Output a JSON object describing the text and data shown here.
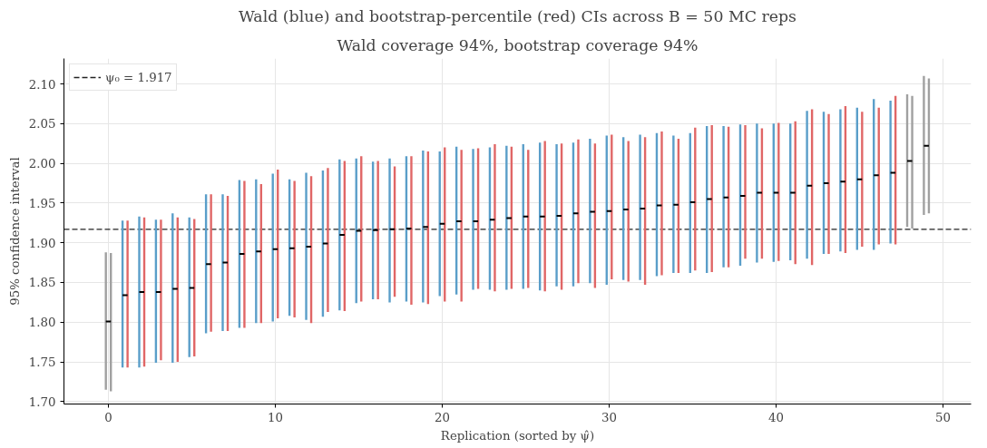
{
  "chart_data": {
    "type": "bar",
    "title": "Wald (blue) and bootstrap-percentile (red) CIs across B = 50 MC reps",
    "subtitle": "Wald coverage 94%, bootstrap coverage 94%",
    "xlabel": "Replication (sorted by ψ̂)",
    "ylabel": "95% confidence interval",
    "xlim": [
      -2.66,
      51.68
    ],
    "ylim": [
      1.697,
      2.132
    ],
    "xticks": [
      0,
      10,
      20,
      30,
      40,
      50
    ],
    "yticks": [
      {
        "value": 1.7,
        "label": "1.70"
      },
      {
        "value": 1.75,
        "label": "1.75"
      },
      {
        "value": 1.8,
        "label": "1.80"
      },
      {
        "value": 1.85,
        "label": "1.85"
      },
      {
        "value": 1.9,
        "label": "1.90"
      },
      {
        "value": 1.95,
        "label": "1.95"
      },
      {
        "value": 2.0,
        "label": "2.00"
      },
      {
        "value": 2.05,
        "label": "2.05"
      },
      {
        "value": 2.1,
        "label": "2.10"
      }
    ],
    "grid": true,
    "legend": "top left",
    "ref_lines": [
      {
        "axis": "y",
        "value": 1.917,
        "label": "ψ₀ = 1.917",
        "color": "#222222",
        "line_style": "dashed"
      }
    ],
    "x": [
      0,
      1,
      2,
      3,
      4,
      5,
      6,
      7,
      8,
      9,
      10,
      11,
      12,
      13,
      14,
      15,
      16,
      17,
      18,
      19,
      20,
      21,
      22,
      23,
      24,
      25,
      26,
      27,
      28,
      29,
      30,
      31,
      32,
      33,
      34,
      35,
      36,
      37,
      38,
      39,
      40,
      41,
      42,
      43,
      44,
      45,
      46,
      47,
      48,
      49
    ],
    "series": [
      {
        "x": [
          -0.15,
          0.85,
          1.85,
          2.85,
          3.85,
          4.85,
          5.85,
          6.85,
          7.85,
          8.85,
          9.85,
          10.85,
          11.85,
          12.85,
          13.85,
          14.85,
          15.85,
          16.85,
          17.85,
          18.85,
          19.85,
          20.85,
          21.85,
          22.85,
          23.85,
          24.85,
          25.85,
          26.85,
          27.85,
          28.85,
          29.85,
          30.85,
          31.85,
          32.85,
          33.85,
          34.85,
          35.85,
          36.85,
          37.85,
          38.85,
          39.85,
          40.85,
          41.85,
          42.85,
          43.85,
          44.85,
          45.85,
          46.85,
          47.85,
          48.85
        ],
        "base": [
          1.715,
          1.743,
          1.743,
          1.749,
          1.749,
          1.756,
          1.786,
          1.789,
          1.793,
          1.799,
          1.801,
          1.808,
          1.803,
          1.807,
          1.815,
          1.824,
          1.829,
          1.825,
          1.826,
          1.825,
          1.833,
          1.835,
          1.841,
          1.841,
          1.841,
          1.842,
          1.84,
          1.845,
          1.845,
          1.849,
          1.847,
          1.853,
          1.853,
          1.858,
          1.862,
          1.862,
          1.862,
          1.869,
          1.871,
          1.875,
          1.876,
          1.878,
          1.88,
          1.886,
          1.889,
          1.891,
          1.891,
          1.899,
          1.92,
          1.935
        ],
        "values": [
          0.173,
          0.185,
          0.19,
          0.18,
          0.188,
          0.176,
          0.175,
          0.172,
          0.186,
          0.181,
          0.186,
          0.172,
          0.185,
          0.184,
          0.19,
          0.182,
          0.173,
          0.181,
          0.183,
          0.191,
          0.182,
          0.186,
          0.177,
          0.179,
          0.181,
          0.182,
          0.186,
          0.179,
          0.181,
          0.182,
          0.188,
          0.18,
          0.183,
          0.18,
          0.173,
          0.176,
          0.185,
          0.178,
          0.178,
          0.175,
          0.174,
          0.172,
          0.186,
          0.179,
          0.179,
          0.179,
          0.19,
          0.18,
          0.167,
          0.175
        ],
        "colors": [
          "#a0a0a0",
          "#5a9ec9",
          "#5a9ec9",
          "#5a9ec9",
          "#5a9ec9",
          "#5a9ec9",
          "#5a9ec9",
          "#5a9ec9",
          "#5a9ec9",
          "#5a9ec9",
          "#5a9ec9",
          "#5a9ec9",
          "#5a9ec9",
          "#5a9ec9",
          "#5a9ec9",
          "#5a9ec9",
          "#5a9ec9",
          "#5a9ec9",
          "#5a9ec9",
          "#5a9ec9",
          "#5a9ec9",
          "#5a9ec9",
          "#5a9ec9",
          "#5a9ec9",
          "#5a9ec9",
          "#5a9ec9",
          "#5a9ec9",
          "#5a9ec9",
          "#5a9ec9",
          "#5a9ec9",
          "#5a9ec9",
          "#5a9ec9",
          "#5a9ec9",
          "#5a9ec9",
          "#5a9ec9",
          "#5a9ec9",
          "#5a9ec9",
          "#5a9ec9",
          "#5a9ec9",
          "#5a9ec9",
          "#5a9ec9",
          "#5a9ec9",
          "#5a9ec9",
          "#5a9ec9",
          "#5a9ec9",
          "#5a9ec9",
          "#5a9ec9",
          "#5a9ec9",
          "#a0a0a0",
          "#a0a0a0"
        ]
      },
      {
        "x": [
          0.15,
          1.15,
          2.15,
          3.15,
          4.15,
          5.15,
          6.15,
          7.15,
          8.15,
          9.15,
          10.15,
          11.15,
          12.15,
          13.15,
          14.15,
          15.15,
          16.15,
          17.15,
          18.15,
          19.15,
          20.15,
          21.15,
          22.15,
          23.15,
          24.15,
          25.15,
          26.15,
          27.15,
          28.15,
          29.15,
          30.15,
          31.15,
          32.15,
          33.15,
          34.15,
          35.15,
          36.15,
          37.15,
          38.15,
          39.15,
          40.15,
          41.15,
          42.15,
          43.15,
          44.15,
          45.15,
          46.15,
          47.15,
          48.15,
          49.15
        ],
        "base": [
          1.713,
          1.743,
          1.744,
          1.752,
          1.75,
          1.757,
          1.788,
          1.789,
          1.793,
          1.799,
          1.805,
          1.806,
          1.799,
          1.813,
          1.814,
          1.826,
          1.829,
          1.832,
          1.822,
          1.823,
          1.826,
          1.826,
          1.842,
          1.839,
          1.842,
          1.843,
          1.839,
          1.841,
          1.849,
          1.843,
          1.854,
          1.851,
          1.847,
          1.859,
          1.862,
          1.865,
          1.863,
          1.869,
          1.88,
          1.88,
          1.877,
          1.873,
          1.872,
          1.886,
          1.887,
          1.895,
          1.898,
          1.898,
          1.918,
          1.937
        ],
        "values": [
          0.174,
          0.185,
          0.188,
          0.177,
          0.182,
          0.173,
          0.173,
          0.17,
          0.185,
          0.175,
          0.187,
          0.172,
          0.185,
          0.181,
          0.189,
          0.183,
          0.174,
          0.164,
          0.187,
          0.192,
          0.194,
          0.191,
          0.177,
          0.185,
          0.179,
          0.174,
          0.189,
          0.184,
          0.181,
          0.182,
          0.182,
          0.177,
          0.186,
          0.181,
          0.169,
          0.18,
          0.185,
          0.177,
          0.168,
          0.164,
          0.174,
          0.18,
          0.196,
          0.176,
          0.185,
          0.17,
          0.172,
          0.187,
          0.167,
          0.17
        ],
        "colors": [
          "#a0a0a0",
          "#e06666",
          "#e06666",
          "#e06666",
          "#e06666",
          "#e06666",
          "#e06666",
          "#e06666",
          "#e06666",
          "#e06666",
          "#e06666",
          "#e06666",
          "#e06666",
          "#e06666",
          "#e06666",
          "#e06666",
          "#e06666",
          "#e06666",
          "#e06666",
          "#e06666",
          "#e06666",
          "#e06666",
          "#e06666",
          "#e06666",
          "#e06666",
          "#e06666",
          "#e06666",
          "#e06666",
          "#e06666",
          "#e06666",
          "#e06666",
          "#e06666",
          "#e06666",
          "#e06666",
          "#e06666",
          "#e06666",
          "#e06666",
          "#e06666",
          "#e06666",
          "#e06666",
          "#e06666",
          "#e06666",
          "#e06666",
          "#e06666",
          "#e06666",
          "#e06666",
          "#e06666",
          "#e06666",
          "#a0a0a0",
          "#a0a0a0"
        ]
      },
      {
        "type": "scatter",
        "marker": "square",
        "color": "#000000",
        "values": [
          1.801,
          1.834,
          1.838,
          1.838,
          1.842,
          1.843,
          1.873,
          1.875,
          1.886,
          1.889,
          1.892,
          1.893,
          1.895,
          1.899,
          1.91,
          1.915,
          1.916,
          1.917,
          1.918,
          1.92,
          1.924,
          1.927,
          1.927,
          1.929,
          1.931,
          1.933,
          1.933,
          1.934,
          1.937,
          1.939,
          1.94,
          1.942,
          1.943,
          1.947,
          1.948,
          1.951,
          1.955,
          1.957,
          1.959,
          1.963,
          1.963,
          1.963,
          1.972,
          1.975,
          1.977,
          1.98,
          1.985,
          1.988,
          2.003,
          2.022
        ]
      }
    ]
  }
}
